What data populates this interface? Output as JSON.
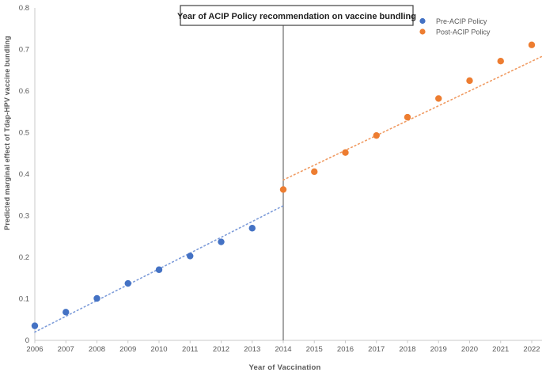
{
  "figure": {
    "annotation_box_label": "Year of ACIP Policy recommendation on vaccine bundling",
    "legend": {
      "position": "top-right",
      "items": [
        {
          "label": "Pre-ACIP Policy",
          "color": "#4472C4"
        },
        {
          "label": "Post-ACIP Policy",
          "color": "#ED7D31"
        }
      ]
    }
  },
  "colors": {
    "axis_line": "#C9C9C9",
    "tick_text": "#595959",
    "axis_title_text": "#595959",
    "box_border": "#3F3F3F",
    "box_fill": "#FFFFFF",
    "vline": "#6A6A6A",
    "background": "#FFFFFF"
  },
  "chart_data": {
    "type": "scatter",
    "title": "Year of ACIP Policy recommendation on vaccine bundling",
    "xlabel": "Year of Vaccination",
    "ylabel": "Predicted marginal effect of Tdap-HPV vaccine bundling",
    "xlim": [
      2006,
      2022
    ],
    "ylim": [
      0,
      0.8
    ],
    "grid": false,
    "legend_position": "top-right",
    "x_ticks": [
      2006,
      2007,
      2008,
      2009,
      2010,
      2011,
      2012,
      2013,
      2014,
      2015,
      2016,
      2017,
      2018,
      2019,
      2020,
      2021,
      2022
    ],
    "y_tick_values": [
      0,
      0.1,
      0.2,
      0.3,
      0.4,
      0.5,
      0.6,
      0.7,
      0.8
    ],
    "y_tick_labels": [
      "0",
      "0.1",
      "0.2",
      "0.3",
      "0.4",
      "0.5",
      "0.6",
      "0.7",
      "0.8"
    ],
    "series": [
      {
        "name": "Pre-ACIP Policy",
        "color": "#4472C4",
        "x": [
          2006,
          2007,
          2008,
          2009,
          2010,
          2011,
          2012,
          2013
        ],
        "y": [
          0.035,
          0.068,
          0.101,
          0.137,
          0.17,
          0.203,
          0.237,
          0.27
        ]
      },
      {
        "name": "Post-ACIP Policy",
        "color": "#ED7D31",
        "x": [
          2014,
          2015,
          2016,
          2017,
          2018,
          2019,
          2020,
          2021,
          2022
        ],
        "y": [
          0.363,
          0.406,
          0.452,
          0.493,
          0.537,
          0.582,
          0.625,
          0.672,
          0.711
        ]
      }
    ],
    "trendlines": [
      {
        "series": "Pre-ACIP Policy",
        "style": "dotted",
        "color": "#7C9BD9",
        "x": [
          2006,
          2014
        ],
        "y": [
          0.02,
          0.324
        ]
      },
      {
        "series": "Post-ACIP Policy",
        "style": "dotted",
        "color": "#F09A61",
        "x": [
          2014,
          2022.35
        ],
        "y": [
          0.386,
          0.684
        ]
      }
    ],
    "vline": {
      "x": 2014,
      "label": "Year of ACIP Policy recommendation on vaccine bundling"
    }
  }
}
